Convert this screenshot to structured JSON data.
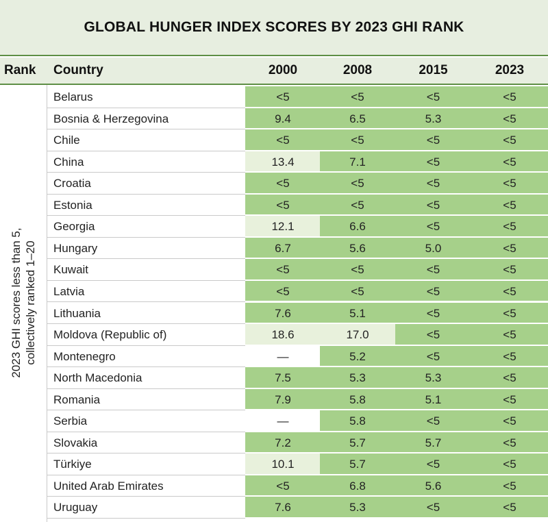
{
  "header": {
    "title": "GLOBAL HUNGER INDEX SCORES BY 2023 GHI RANK"
  },
  "table": {
    "columns": [
      "Rank",
      "Country",
      "2000",
      "2008",
      "2015",
      "2023"
    ],
    "rank_note": [
      "2023 GHI scores less than 5,",
      "collectively ranked 1–20"
    ],
    "rows": [
      {
        "country": "Belarus",
        "scores": [
          "<5",
          "<5",
          "<5",
          "<5"
        ],
        "colors": [
          "#a6d08a",
          "#a6d08a",
          "#a6d08a",
          "#a6d08a"
        ]
      },
      {
        "country": "Bosnia & Herzegovina",
        "scores": [
          "9.4",
          "6.5",
          "5.3",
          "<5"
        ],
        "colors": [
          "#a6d08a",
          "#a6d08a",
          "#a6d08a",
          "#a6d08a"
        ]
      },
      {
        "country": "Chile",
        "scores": [
          "<5",
          "<5",
          "<5",
          "<5"
        ],
        "colors": [
          "#a6d08a",
          "#a6d08a",
          "#a6d08a",
          "#a6d08a"
        ]
      },
      {
        "country": "China",
        "scores": [
          "13.4",
          "7.1",
          "<5",
          "<5"
        ],
        "colors": [
          "#e8f1dc",
          "#a6d08a",
          "#a6d08a",
          "#a6d08a"
        ]
      },
      {
        "country": "Croatia",
        "scores": [
          "<5",
          "<5",
          "<5",
          "<5"
        ],
        "colors": [
          "#a6d08a",
          "#a6d08a",
          "#a6d08a",
          "#a6d08a"
        ]
      },
      {
        "country": "Estonia",
        "scores": [
          "<5",
          "<5",
          "<5",
          "<5"
        ],
        "colors": [
          "#a6d08a",
          "#a6d08a",
          "#a6d08a",
          "#a6d08a"
        ]
      },
      {
        "country": "Georgia",
        "scores": [
          "12.1",
          "6.6",
          "<5",
          "<5"
        ],
        "colors": [
          "#e8f1dc",
          "#a6d08a",
          "#a6d08a",
          "#a6d08a"
        ]
      },
      {
        "country": "Hungary",
        "scores": [
          "6.7",
          "5.6",
          "5.0",
          "<5"
        ],
        "colors": [
          "#a6d08a",
          "#a6d08a",
          "#a6d08a",
          "#a6d08a"
        ]
      },
      {
        "country": "Kuwait",
        "scores": [
          "<5",
          "<5",
          "<5",
          "<5"
        ],
        "colors": [
          "#a6d08a",
          "#a6d08a",
          "#a6d08a",
          "#a6d08a"
        ]
      },
      {
        "country": "Latvia",
        "scores": [
          "<5",
          "<5",
          "<5",
          "<5"
        ],
        "colors": [
          "#a6d08a",
          "#a6d08a",
          "#a6d08a",
          "#a6d08a"
        ]
      },
      {
        "country": "Lithuania",
        "scores": [
          "7.6",
          "5.1",
          "<5",
          "<5"
        ],
        "colors": [
          "#a6d08a",
          "#a6d08a",
          "#a6d08a",
          "#a6d08a"
        ]
      },
      {
        "country": "Moldova (Republic of)",
        "scores": [
          "18.6",
          "17.0",
          "<5",
          "<5"
        ],
        "colors": [
          "#e8f1dc",
          "#e8f1dc",
          "#a6d08a",
          "#a6d08a"
        ]
      },
      {
        "country": "Montenegro",
        "scores": [
          "—",
          "5.2",
          "<5",
          "<5"
        ],
        "colors": [
          "#ffffff",
          "#a6d08a",
          "#a6d08a",
          "#a6d08a"
        ]
      },
      {
        "country": "North Macedonia",
        "scores": [
          "7.5",
          "5.3",
          "5.3",
          "<5"
        ],
        "colors": [
          "#a6d08a",
          "#a6d08a",
          "#a6d08a",
          "#a6d08a"
        ]
      },
      {
        "country": "Romania",
        "scores": [
          "7.9",
          "5.8",
          "5.1",
          "<5"
        ],
        "colors": [
          "#a6d08a",
          "#a6d08a",
          "#a6d08a",
          "#a6d08a"
        ]
      },
      {
        "country": "Serbia",
        "scores": [
          "—",
          "5.8",
          "<5",
          "<5"
        ],
        "colors": [
          "#ffffff",
          "#a6d08a",
          "#a6d08a",
          "#a6d08a"
        ]
      },
      {
        "country": "Slovakia",
        "scores": [
          "7.2",
          "5.7",
          "5.7",
          "<5"
        ],
        "colors": [
          "#a6d08a",
          "#a6d08a",
          "#a6d08a",
          "#a6d08a"
        ]
      },
      {
        "country": "Türkiye",
        "scores": [
          "10.1",
          "5.7",
          "<5",
          "<5"
        ],
        "colors": [
          "#e8f1dc",
          "#a6d08a",
          "#a6d08a",
          "#a6d08a"
        ]
      },
      {
        "country": "United Arab Emirates",
        "scores": [
          "<5",
          "6.8",
          "5.6",
          "<5"
        ],
        "colors": [
          "#a6d08a",
          "#a6d08a",
          "#a6d08a",
          "#a6d08a"
        ]
      },
      {
        "country": "Uruguay",
        "scores": [
          "7.6",
          "5.3",
          "<5",
          "<5"
        ],
        "colors": [
          "#a6d08a",
          "#a6d08a",
          "#a6d08a",
          "#a6d08a"
        ]
      }
    ]
  }
}
